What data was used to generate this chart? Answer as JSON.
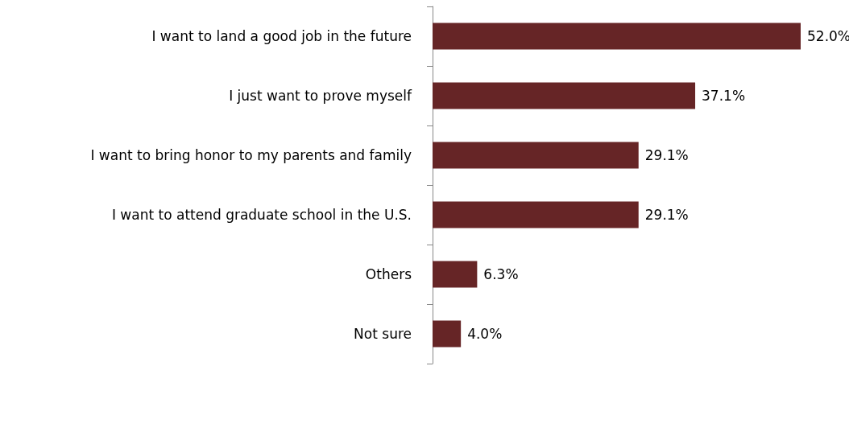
{
  "chart_data": {
    "type": "bar",
    "orientation": "horizontal",
    "categories": [
      "I want to land a good job in the future",
      "I just want to prove myself",
      "I want to bring honor to my parents and family",
      "I want to attend graduate school in the U.S.",
      "Others",
      "Not sure"
    ],
    "values": [
      52.0,
      37.1,
      29.1,
      29.1,
      6.3,
      4.0
    ],
    "value_labels": [
      "52.0%",
      "37.1%",
      "29.1%",
      "29.1%",
      "6.3%",
      "4.0%"
    ],
    "color": "#662526",
    "grid": false
  }
}
